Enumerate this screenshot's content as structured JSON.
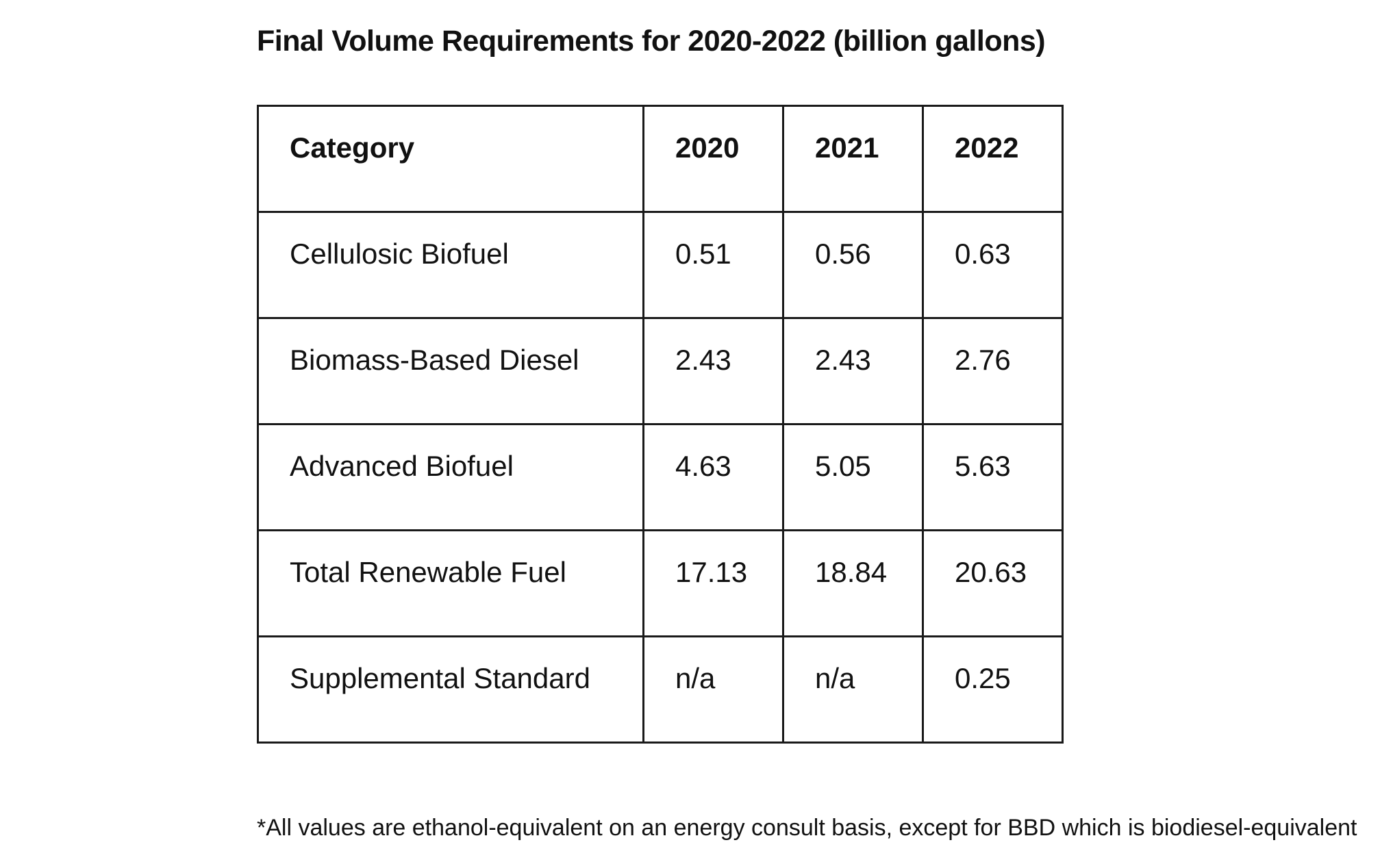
{
  "title": "Final Volume Requirements for 2020-2022 (billion gallons)",
  "table": {
    "headers": [
      "Category",
      "2020",
      "2021",
      "2022"
    ],
    "rows": [
      [
        "Cellulosic Biofuel",
        "0.51",
        "0.56",
        "0.63"
      ],
      [
        "Biomass-Based Diesel",
        "2.43",
        "2.43",
        "2.76"
      ],
      [
        "Advanced Biofuel",
        "4.63",
        "5.05",
        "5.63"
      ],
      [
        "Total Renewable Fuel",
        "17.13",
        "18.84",
        "20.63"
      ],
      [
        "Supplemental Standard",
        "n/a",
        "n/a",
        "0.25"
      ]
    ]
  },
  "footnote": "*All values are ethanol-equivalent on an energy consult basis, except for BBD which is biodiesel-equivalent"
}
